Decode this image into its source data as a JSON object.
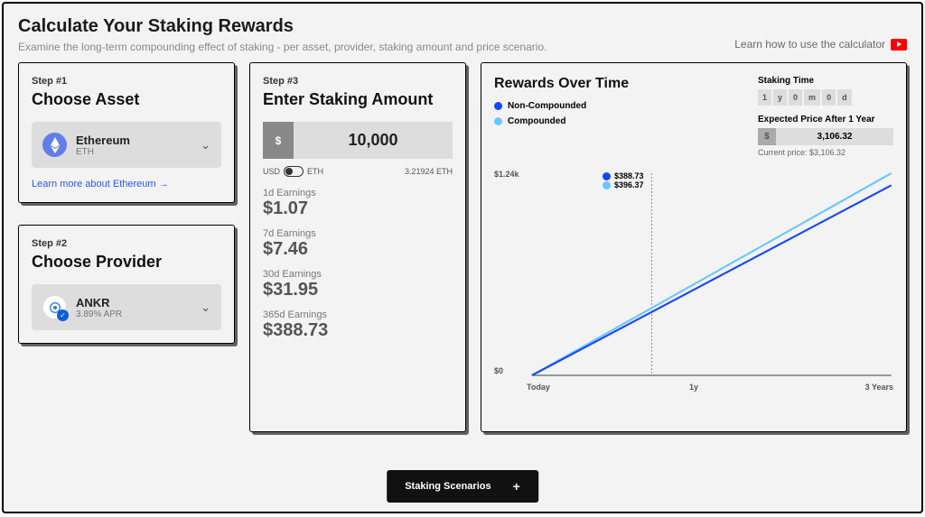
{
  "header": {
    "title": "Calculate Your Staking Rewards",
    "subtitle": "Examine the long-term compounding effect of staking - per asset, provider, staking amount and price scenario.",
    "learn_link": "Learn how to use the calculator"
  },
  "step1": {
    "label": "Step #1",
    "title": "Choose Asset",
    "asset_name": "Ethereum",
    "asset_symbol": "ETH",
    "learn_more": "Learn more about Ethereum →"
  },
  "step2": {
    "label": "Step #2",
    "title": "Choose Provider",
    "provider_name": "ANKR",
    "provider_apr": "3.89% APR"
  },
  "step3": {
    "label": "Step #3",
    "title": "Enter Staking Amount",
    "currency": "$",
    "amount": "10,000",
    "unit_from": "USD",
    "unit_to": "ETH",
    "eth_equiv": "3.21924 ETH",
    "earnings": [
      {
        "label": "1d Earnings",
        "value": "$1.07"
      },
      {
        "label": "7d Earnings",
        "value": "$7.46"
      },
      {
        "label": "30d Earnings",
        "value": "$31.95"
      },
      {
        "label": "365d Earnings",
        "value": "$388.73"
      }
    ]
  },
  "chart": {
    "title": "Rewards Over Time",
    "legend": [
      {
        "label": "Non-Compounded",
        "color": "#1447ff"
      },
      {
        "label": "Compounded",
        "color": "#6ac6ff"
      }
    ],
    "staking_time_label": "Staking Time",
    "time_boxes": [
      "1",
      "y",
      "0",
      "m",
      "0",
      "d"
    ],
    "expected_price_label": "Expected Price After 1 Year",
    "expected_price_currency": "$",
    "expected_price_value": "3,106.32",
    "current_price": "Current price: $3,106.32",
    "y_max_label": "$1.24k",
    "y_min_label": "$0",
    "x_start": "Today",
    "x_mid": "1y",
    "x_end": "3 Years",
    "tooltip_noncompounded": "$388.73",
    "tooltip_compounded": "$396.37",
    "series": {
      "type": "line",
      "xlim": [
        0,
        3
      ],
      "ylim": [
        0,
        1240
      ],
      "marker_x": 1,
      "non_compounded": {
        "start": [
          0,
          0
        ],
        "end": [
          3,
          1166
        ],
        "color": "#1447ff",
        "width": 2
      },
      "compounded": {
        "start": [
          0,
          0
        ],
        "end": [
          3,
          1240
        ],
        "color": "#6ac6ff",
        "width": 2
      }
    }
  },
  "scenarios_button": "Staking Scenarios"
}
